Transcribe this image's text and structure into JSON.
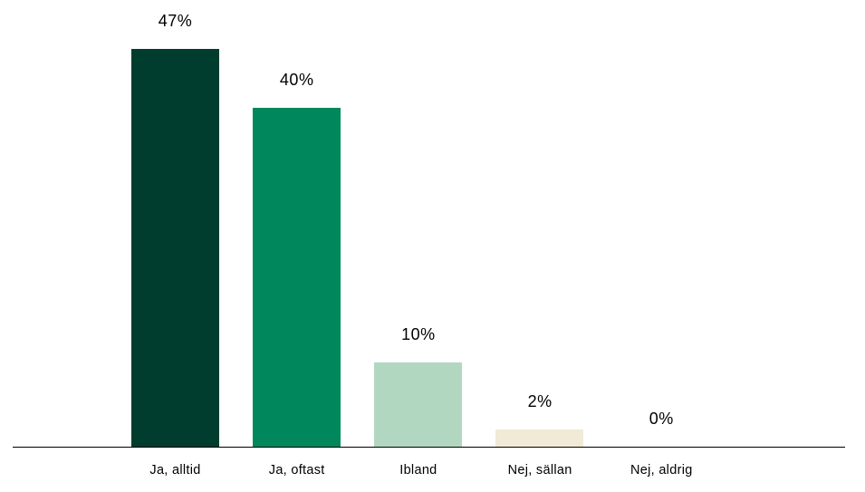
{
  "chart_data": {
    "type": "bar",
    "title": "",
    "xlabel": "",
    "ylabel": "",
    "categories": [
      "Ja, alltid",
      "Ja, oftast",
      "Ibland",
      "Nej, sällan",
      "Nej, aldrig"
    ],
    "values": [
      47,
      40,
      10,
      2,
      0
    ],
    "value_labels": [
      "47%",
      "40%",
      "10%",
      "2%",
      "0%"
    ],
    "bar_colors": [
      "#003D2E",
      "#00875B",
      "#B2D7C1",
      "#F0EAD6",
      "#FFFFFF"
    ],
    "unit": "%",
    "ylim": [
      0,
      52
    ],
    "grid": false,
    "legend": false,
    "y_axis_visible": false,
    "x_axis_line_color": "#000000",
    "background_color": "#FFFFFF",
    "text_color": "#000000"
  }
}
